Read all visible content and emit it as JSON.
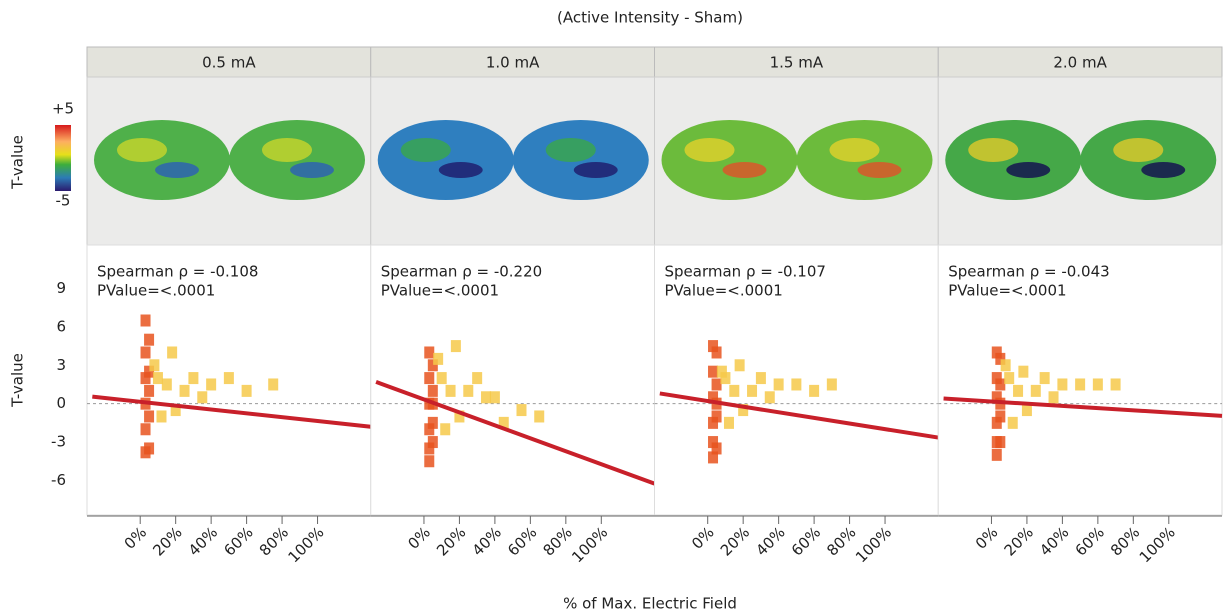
{
  "title": "(Active Intensity - Sham)",
  "x_label": "% of Max. Electric Field",
  "y_label": "T-value",
  "colorbar": {
    "label": "T-value",
    "ticks": [
      {
        "value": 5,
        "label": "+5"
      },
      -5
    ]
  },
  "chart_data": [
    {
      "type": "scatter",
      "title": "0.5 mA",
      "annotations": [
        "Spearman ρ = -0.108",
        "PValue=<.0001"
      ],
      "x": [
        3,
        3,
        3,
        3,
        3,
        3,
        5,
        5,
        5,
        5,
        5,
        8,
        10,
        12,
        15,
        18,
        20,
        25,
        30,
        35,
        40,
        50,
        60,
        75
      ],
      "values": [
        6.5,
        4,
        2,
        0,
        -2,
        -3.8,
        5,
        2.5,
        -1,
        -3.5,
        1,
        3,
        2,
        -1,
        1.5,
        4,
        -0.5,
        1,
        2,
        0.5,
        1.5,
        2,
        1,
        1.5
      ],
      "color": "#e8541e",
      "fit": {
        "x": [
          -27,
          130
        ],
        "values": [
          0.55,
          -1.8
        ],
        "color": "#c8202a"
      },
      "hline": 0,
      "xlim": [
        -30,
        130
      ],
      "ylim": [
        -8.7,
        12.4
      ],
      "yticks": [
        -6,
        -3,
        0,
        3,
        6,
        9
      ],
      "xticks": [
        {
          "value": 0,
          "label": "0%"
        },
        {
          "value": 20,
          "label": "20%"
        },
        {
          "value": 40,
          "label": "40%"
        },
        {
          "value": 60,
          "label": "60%"
        },
        {
          "value": 80,
          "label": "80%"
        },
        {
          "value": 100,
          "label": "100%"
        }
      ]
    },
    {
      "type": "scatter",
      "title": "1.0 mA",
      "annotations": [
        "Spearman ρ = -0.220",
        "PValue=<.0001"
      ],
      "x": [
        3,
        3,
        3,
        3,
        3,
        3,
        5,
        5,
        5,
        5,
        5,
        8,
        10,
        12,
        15,
        18,
        20,
        25,
        30,
        35,
        40,
        45,
        55,
        65
      ],
      "values": [
        4,
        2,
        0,
        -2,
        -3.5,
        -4.5,
        3,
        1,
        -1.5,
        -3,
        0,
        3.5,
        2,
        -2,
        1,
        4.5,
        -1,
        1,
        2,
        0.5,
        0.5,
        -1.5,
        -0.5,
        -1
      ],
      "color": "#e8541e",
      "fit": {
        "x": [
          -27,
          130
        ],
        "values": [
          1.7,
          -6.25
        ],
        "color": "#c8202a"
      },
      "hline": 0,
      "xlim": [
        -30,
        130
      ],
      "ylim": [
        -8.7,
        12.4
      ],
      "xticks": [
        {
          "value": 0,
          "label": "0%"
        },
        {
          "value": 20,
          "label": "20%"
        },
        {
          "value": 40,
          "label": "40%"
        },
        {
          "value": 60,
          "label": "60%"
        },
        {
          "value": 80,
          "label": "80%"
        },
        {
          "value": 100,
          "label": "100%"
        }
      ]
    },
    {
      "type": "scatter",
      "title": "1.5 mA",
      "annotations": [
        "Spearman ρ = -0.107",
        "PValue=<.0001"
      ],
      "x": [
        3,
        3,
        3,
        3,
        3,
        3,
        5,
        5,
        5,
        5,
        5,
        8,
        10,
        12,
        15,
        18,
        20,
        25,
        30,
        35,
        40,
        50,
        60,
        70
      ],
      "values": [
        4.5,
        2.5,
        0.5,
        -1.5,
        -3,
        -4.2,
        4,
        1.5,
        -1,
        -3.5,
        0,
        2.5,
        2,
        -1.5,
        1,
        3,
        -0.5,
        1,
        2,
        0.5,
        1.5,
        1.5,
        1,
        1.5
      ],
      "color": "#e8541e",
      "fit": {
        "x": [
          -27,
          130
        ],
        "values": [
          0.8,
          -2.65
        ],
        "color": "#c8202a"
      },
      "hline": 0,
      "xlim": [
        -30,
        130
      ],
      "ylim": [
        -8.7,
        12.4
      ],
      "xticks": [
        {
          "value": 0,
          "label": "0%"
        },
        {
          "value": 20,
          "label": "20%"
        },
        {
          "value": 40,
          "label": "40%"
        },
        {
          "value": 60,
          "label": "60%"
        },
        {
          "value": 80,
          "label": "80%"
        },
        {
          "value": 100,
          "label": "100%"
        }
      ]
    },
    {
      "type": "scatter",
      "title": "2.0 mA",
      "annotations": [
        "Spearman ρ = -0.043",
        "PValue=<.0001"
      ],
      "x": [
        3,
        3,
        3,
        3,
        3,
        3,
        5,
        5,
        5,
        5,
        5,
        8,
        10,
        12,
        15,
        18,
        20,
        25,
        30,
        35,
        40,
        50,
        60,
        70
      ],
      "values": [
        4,
        2,
        0.5,
        -1.5,
        -3,
        -4,
        3.5,
        1.5,
        -1,
        -3,
        0,
        3,
        2,
        -1.5,
        1,
        2.5,
        -0.5,
        1,
        2,
        0.5,
        1.5,
        1.5,
        1.5,
        1.5
      ],
      "color": "#e8541e",
      "fit": {
        "x": [
          -27,
          130
        ],
        "values": [
          0.4,
          -0.95
        ],
        "color": "#c8202a"
      },
      "hline": 0,
      "xlim": [
        -30,
        130
      ],
      "ylim": [
        -8.7,
        12.4
      ],
      "xticks": [
        {
          "value": 0,
          "label": "0%"
        },
        {
          "value": 20,
          "label": "20%"
        },
        {
          "value": 40,
          "label": "40%"
        },
        {
          "value": 60,
          "label": "60%"
        },
        {
          "value": 80,
          "label": "80%"
        },
        {
          "value": 100,
          "label": "100%"
        }
      ]
    }
  ]
}
